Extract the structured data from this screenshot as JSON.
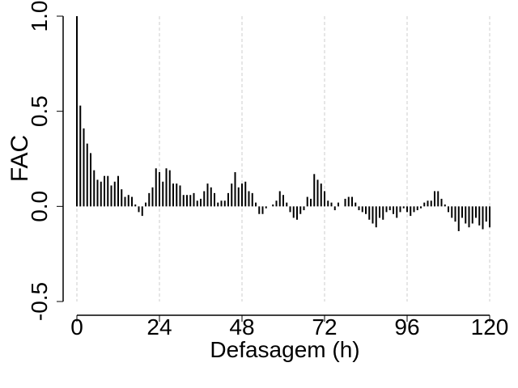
{
  "chart_data": {
    "type": "bar",
    "xlabel": "Defasagem (h)",
    "ylabel": "FAC",
    "x": [
      0,
      1,
      2,
      3,
      4,
      5,
      6,
      7,
      8,
      9,
      10,
      11,
      12,
      13,
      14,
      15,
      16,
      17,
      18,
      19,
      20,
      21,
      22,
      23,
      24,
      25,
      26,
      27,
      28,
      29,
      30,
      31,
      32,
      33,
      34,
      35,
      36,
      37,
      38,
      39,
      40,
      41,
      42,
      43,
      44,
      45,
      46,
      47,
      48,
      49,
      50,
      51,
      52,
      53,
      54,
      55,
      56,
      57,
      58,
      59,
      60,
      61,
      62,
      63,
      64,
      65,
      66,
      67,
      68,
      69,
      70,
      71,
      72,
      73,
      74,
      75,
      76,
      77,
      78,
      79,
      80,
      81,
      82,
      83,
      84,
      85,
      86,
      87,
      88,
      89,
      90,
      91,
      92,
      93,
      94,
      95,
      96,
      97,
      98,
      99,
      100,
      101,
      102,
      103,
      104,
      105,
      106,
      107,
      108,
      109,
      110,
      111,
      112,
      113,
      114,
      115,
      116,
      117,
      118,
      119,
      120
    ],
    "values": [
      1.0,
      0.53,
      0.41,
      0.33,
      0.28,
      0.19,
      0.14,
      0.13,
      0.16,
      0.16,
      0.11,
      0.13,
      0.16,
      0.09,
      0.05,
      0.06,
      0.05,
      0.01,
      -0.03,
      -0.05,
      0.02,
      0.07,
      0.1,
      0.2,
      0.18,
      0.13,
      0.2,
      0.19,
      0.12,
      0.12,
      0.11,
      0.06,
      0.06,
      0.06,
      0.07,
      0.03,
      0.04,
      0.08,
      0.12,
      0.1,
      0.07,
      0.02,
      0.03,
      0.03,
      0.07,
      0.12,
      0.18,
      0.1,
      0.12,
      0.13,
      0.08,
      0.07,
      0.02,
      -0.04,
      -0.04,
      -0.01,
      0.0,
      0.01,
      0.03,
      0.08,
      0.06,
      0.02,
      -0.03,
      -0.06,
      -0.07,
      -0.04,
      -0.02,
      0.05,
      0.04,
      0.17,
      0.14,
      0.12,
      0.08,
      0.03,
      0.02,
      -0.02,
      0.02,
      0.0,
      0.04,
      0.05,
      0.05,
      0.02,
      -0.02,
      -0.03,
      -0.04,
      -0.07,
      -0.09,
      -0.11,
      -0.06,
      -0.07,
      -0.03,
      -0.02,
      -0.04,
      -0.06,
      -0.03,
      -0.01,
      -0.03,
      -0.05,
      -0.03,
      -0.02,
      -0.01,
      0.02,
      0.03,
      0.03,
      0.08,
      0.08,
      0.04,
      0.01,
      -0.03,
      -0.06,
      -0.08,
      -0.13,
      -0.06,
      -0.09,
      -0.11,
      -0.09,
      -0.06,
      -0.1,
      -0.12,
      -0.08,
      -0.11
    ],
    "color": "#000000",
    "xlim": [
      0,
      120
    ],
    "xticks": [
      0,
      24,
      48,
      72,
      96,
      120
    ],
    "ylim": [
      -0.5,
      1.0
    ],
    "yticks": [
      {
        "value": -0.5,
        "label": "-0.5"
      },
      {
        "value": 0.0,
        "label": "0.0"
      },
      {
        "value": 0.5,
        "label": "0.5"
      },
      {
        "value": 1.0,
        "label": "1.0"
      }
    ],
    "grid": "x"
  }
}
